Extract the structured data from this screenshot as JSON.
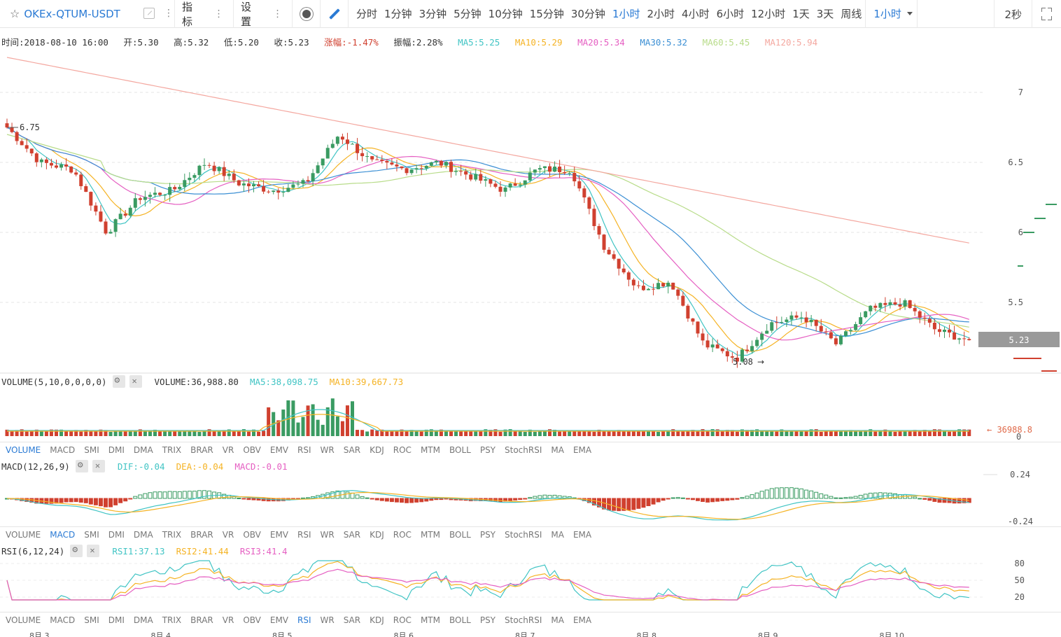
{
  "toolbar": {
    "title": "OKEx-QTUM-USDT",
    "indicator_label": "指标",
    "settings_label": "设置",
    "periods": [
      "分时",
      "1分钟",
      "3分钟",
      "5分钟",
      "10分钟",
      "15分钟",
      "30分钟",
      "1小时",
      "2小时",
      "4小时",
      "6小时",
      "12小时",
      "1天",
      "3天",
      "周线"
    ],
    "active_period": "1小时",
    "period_select": "1小时",
    "refresh": "2秒"
  },
  "info": {
    "time": "时间:2018-08-10 16:00",
    "open": "开:5.30",
    "high": "高:5.32",
    "low": "低:5.20",
    "close": "收:5.23",
    "change": "涨幅:-1.47%",
    "amplitude": "振幅:2.28%",
    "ma5": "MA5:5.25",
    "ma10": "MA10:5.29",
    "ma20": "MA20:5.34",
    "ma30": "MA30:5.32",
    "ma60": "MA60:5.45",
    "ma120": "MA120:5.94"
  },
  "colors": {
    "up": "#3a9b62",
    "down": "#d0402f",
    "ma5": "#40c4c4",
    "ma10": "#f5b324",
    "ma20": "#e55fc2",
    "ma30": "#3b8fd4",
    "ma60": "#b8dc8a",
    "ma120": "#f4a8a0",
    "accent": "#2a7ad4"
  },
  "price_axis": [
    "7",
    "6.5",
    "6",
    "5.5"
  ],
  "price_marker": "5.23",
  "high_marker": "6.75",
  "low_marker": "5.08",
  "volume": {
    "label": "VOLUME(5,10,0,0,0,0)",
    "value": "VOLUME:36,988.80",
    "ma5": "MA5:38,098.75",
    "ma10": "MA10:39,667.73",
    "last_marker": "← 36988.8",
    "zero": "0"
  },
  "indicator_tabs": [
    "VOLUME",
    "MACD",
    "SMI",
    "DMI",
    "DMA",
    "TRIX",
    "BRAR",
    "VR",
    "OBV",
    "EMV",
    "RSI",
    "WR",
    "SAR",
    "KDJ",
    "ROC",
    "MTM",
    "BOLL",
    "PSY",
    "StochRSI",
    "MA",
    "EMA"
  ],
  "macd": {
    "label": "MACD(12,26,9)",
    "dif": "DIF:-0.04",
    "dea": "DEA:-0.04",
    "macd": "MACD:-0.01",
    "axis_top": "0.24",
    "axis_bottom": "-0.24"
  },
  "rsi": {
    "label": "RSI(6,12,24)",
    "rsi1": "RSI1:37.13",
    "rsi2": "RSI2:41.44",
    "rsi3": "RSI3:41.4",
    "axis": [
      "80",
      "50",
      "20"
    ]
  },
  "x_axis": [
    "8月 3",
    "8月 4",
    "8月 5",
    "8月 6",
    "8月 7",
    "8月 8",
    "8月 9",
    "8月 10"
  ],
  "chart_data": {
    "type": "candlestick",
    "interval": "1小时",
    "ohlc_key_points": [
      6.75,
      6.5,
      6.45,
      6.0,
      6.25,
      6.3,
      6.5,
      6.35,
      6.3,
      6.35,
      6.7,
      6.5,
      6.45,
      6.5,
      6.4,
      6.3,
      6.45,
      6.45,
      5.9,
      5.6,
      5.65,
      5.2,
      5.1,
      5.35,
      5.4,
      5.2,
      5.45,
      5.5,
      5.3,
      5.23
    ],
    "last": {
      "time": "2018-08-10 16:00",
      "open": 5.3,
      "high": 5.32,
      "low": 5.2,
      "close": 5.23
    },
    "ylim": [
      5.0,
      7.1
    ]
  }
}
